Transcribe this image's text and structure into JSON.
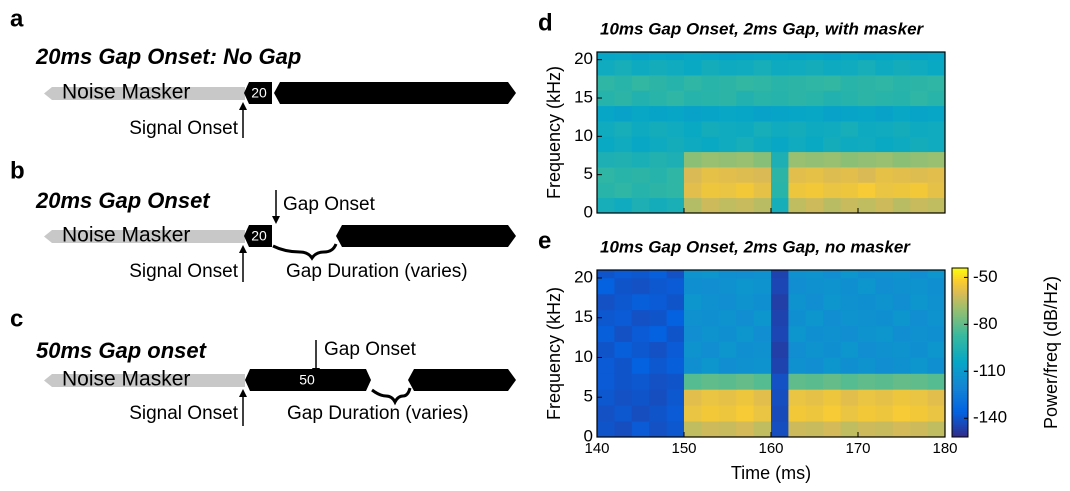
{
  "panels": [
    {
      "letter": "a",
      "title": "20ms Gap Onset: No Gap",
      "masker": "Noise Masker",
      "onset_box": "20",
      "signal_onset": "Signal Onset"
    },
    {
      "letter": "b",
      "title": "20ms Gap Onset",
      "masker": "Noise Masker",
      "onset_box": "20",
      "gap_onset": "Gap Onset",
      "signal_onset": "Signal Onset",
      "gap_duration": "Gap Duration (varies)"
    },
    {
      "letter": "c",
      "title": "50ms Gap onset",
      "masker": "Noise Masker",
      "onset_box": "50",
      "gap_onset": "Gap Onset",
      "signal_onset": "Signal Onset",
      "gap_duration": "Gap Duration (varies)"
    }
  ],
  "chart_data": [
    {
      "type": "heatmap",
      "panel_label": "d",
      "title": "10ms Gap Onset, 2ms Gap, with masker",
      "y_label": "Frequency (kHz)",
      "xlim": [
        140,
        180
      ],
      "xticks": [
        140,
        150,
        160,
        170,
        180
      ],
      "ylim": [
        0,
        21
      ],
      "yticks": [
        0,
        5,
        10,
        15,
        20
      ],
      "clim": [
        -152,
        -44
      ],
      "xbins": [
        140,
        142,
        144,
        146,
        148,
        150,
        152,
        154,
        156,
        158,
        160,
        162,
        164,
        166,
        168,
        170,
        172,
        174,
        176,
        178,
        180
      ],
      "ybins": [
        0,
        2,
        4,
        6,
        8,
        10,
        12,
        14,
        16,
        18,
        20,
        21
      ],
      "z": [
        [
          -98,
          -100,
          -96,
          -99,
          -97,
          -66,
          -62,
          -64,
          -63,
          -65,
          -98,
          -64,
          -62,
          -65,
          -63,
          -64,
          -62,
          -65,
          -63,
          -64
        ],
        [
          -92,
          -90,
          -93,
          -91,
          -90,
          -58,
          -55,
          -56,
          -54,
          -57,
          -92,
          -55,
          -54,
          -56,
          -55,
          -53,
          -56,
          -55,
          -54,
          -57
        ],
        [
          -90,
          -92,
          -91,
          -93,
          -90,
          -60,
          -57,
          -58,
          -59,
          -60,
          -91,
          -58,
          -57,
          -59,
          -58,
          -60,
          -57,
          -58,
          -59,
          -58
        ],
        [
          -96,
          -95,
          -97,
          -94,
          -96,
          -72,
          -70,
          -71,
          -70,
          -73,
          -96,
          -70,
          -71,
          -70,
          -72,
          -71,
          -70,
          -72,
          -71,
          -70
        ],
        [
          -102,
          -100,
          -103,
          -101,
          -99,
          -101,
          -102,
          -100,
          -98,
          -101,
          -103,
          -100,
          -102,
          -99,
          -101,
          -100,
          -102,
          -101,
          -99,
          -100
        ],
        [
          -100,
          -98,
          -101,
          -99,
          -100,
          -102,
          -99,
          -100,
          -101,
          -98,
          -100,
          -99,
          -101,
          -100,
          -98,
          -101,
          -100,
          -99,
          -101,
          -100
        ],
        [
          -104,
          -106,
          -103,
          -105,
          -104,
          -106,
          -105,
          -103,
          -104,
          -106,
          -105,
          -104,
          -103,
          -106,
          -105,
          -104,
          -106,
          -103,
          -105,
          -104
        ],
        [
          -93,
          -91,
          -94,
          -92,
          -90,
          -93,
          -92,
          -91,
          -94,
          -92,
          -93,
          -91,
          -92,
          -94,
          -93,
          -91,
          -92,
          -93,
          -90,
          -92
        ],
        [
          -90,
          -92,
          -89,
          -91,
          -93,
          -90,
          -92,
          -91,
          -89,
          -90,
          -92,
          -91,
          -90,
          -89,
          -92,
          -91,
          -90,
          -92,
          -91,
          -90
        ],
        [
          -100,
          -98,
          -101,
          -99,
          -100,
          -102,
          -99,
          -101,
          -100,
          -98,
          -101,
          -100,
          -99,
          -101,
          -100,
          -98,
          -101,
          -99,
          -100,
          -102
        ],
        [
          -104,
          -103,
          -106,
          -104,
          -105,
          -103,
          -104,
          -106,
          -105,
          -104,
          -103,
          -105,
          -104,
          -106,
          -103,
          -105,
          -104,
          -103,
          -105,
          -104
        ]
      ]
    },
    {
      "type": "heatmap",
      "panel_label": "e",
      "title": "10ms Gap Onset, 2ms Gap, no masker",
      "x_label": "Time (ms)",
      "y_label": "Frequency (kHz)",
      "xlim": [
        140,
        180
      ],
      "xticks": [
        140,
        150,
        160,
        170,
        180
      ],
      "ylim": [
        0,
        21
      ],
      "yticks": [
        0,
        5,
        10,
        15,
        20
      ],
      "clim": [
        -152,
        -44
      ],
      "colorbar": {
        "label": "Power/freq (dB/Hz)",
        "ticks": [
          -50,
          -80,
          -110,
          -140
        ]
      },
      "xbins": [
        140,
        142,
        144,
        146,
        148,
        150,
        152,
        154,
        156,
        158,
        160,
        162,
        164,
        166,
        168,
        170,
        172,
        174,
        176,
        178,
        180
      ],
      "ybins": [
        0,
        2,
        4,
        6,
        8,
        10,
        12,
        14,
        16,
        18,
        20,
        21
      ],
      "z": [
        [
          -140,
          -142,
          -138,
          -141,
          -139,
          -64,
          -62,
          -63,
          -61,
          -64,
          -142,
          -62,
          -63,
          -61,
          -64,
          -62,
          -63,
          -61,
          -62,
          -64
        ],
        [
          -141,
          -139,
          -142,
          -140,
          -138,
          -56,
          -54,
          -55,
          -53,
          -56,
          -143,
          -54,
          -55,
          -53,
          -56,
          -54,
          -55,
          -53,
          -54,
          -56
        ],
        [
          -139,
          -141,
          -140,
          -142,
          -139,
          -58,
          -56,
          -57,
          -55,
          -58,
          -142,
          -56,
          -57,
          -55,
          -58,
          -56,
          -57,
          -55,
          -56,
          -58
        ],
        [
          -138,
          -140,
          -139,
          -141,
          -140,
          -82,
          -80,
          -81,
          -79,
          -82,
          -141,
          -80,
          -81,
          -79,
          -82,
          -80,
          -81,
          -79,
          -80,
          -82
        ],
        [
          -138,
          -140,
          -136,
          -139,
          -137,
          -115,
          -112,
          -116,
          -114,
          -113,
          -145,
          -114,
          -116,
          -112,
          -115,
          -113,
          -116,
          -114,
          -112,
          -115
        ],
        [
          -140,
          -137,
          -139,
          -141,
          -138,
          -113,
          -116,
          -112,
          -115,
          -114,
          -146,
          -116,
          -113,
          -115,
          -112,
          -116,
          -114,
          -113,
          -115,
          -112
        ],
        [
          -137,
          -141,
          -138,
          -136,
          -140,
          -116,
          -113,
          -115,
          -112,
          -116,
          -144,
          -112,
          -115,
          -114,
          -116,
          -113,
          -112,
          -116,
          -114,
          -115
        ],
        [
          -139,
          -138,
          -141,
          -140,
          -136,
          -114,
          -115,
          -113,
          -116,
          -112,
          -145,
          -115,
          -112,
          -116,
          -113,
          -114,
          -115,
          -112,
          -116,
          -113
        ],
        [
          -141,
          -139,
          -137,
          -138,
          -140,
          -112,
          -114,
          -116,
          -113,
          -115,
          -146,
          -113,
          -116,
          -112,
          -114,
          -115,
          -113,
          -116,
          -112,
          -114
        ],
        [
          -136,
          -140,
          -141,
          -139,
          -138,
          -115,
          -116,
          -114,
          -112,
          -113,
          -144,
          -116,
          -114,
          -113,
          -115,
          -112,
          -116,
          -114,
          -113,
          -115
        ],
        [
          -140,
          -138,
          -139,
          -137,
          -141,
          -113,
          -112,
          -115,
          -116,
          -114,
          -145,
          -114,
          -113,
          -116,
          -112,
          -115,
          -114,
          -113,
          -116,
          -112
        ]
      ]
    }
  ]
}
